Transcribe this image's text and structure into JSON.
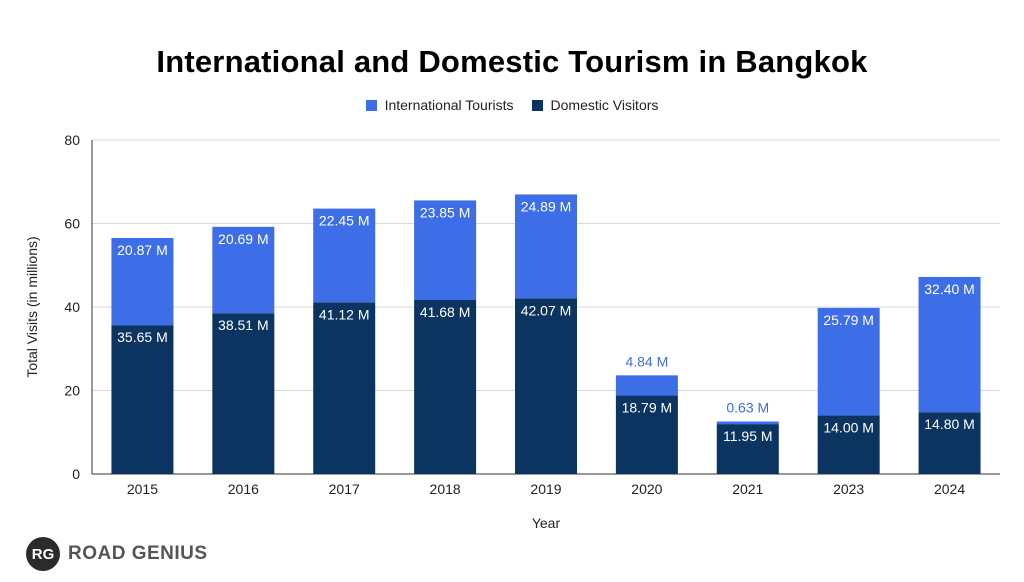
{
  "chart_data": {
    "type": "bar",
    "stacked": true,
    "title": "International and Domestic Tourism in Bangkok",
    "xlabel": "Year",
    "ylabel": "Total Visits (in millions)",
    "ylim": [
      0,
      80
    ],
    "yticks": [
      "0",
      "20",
      "40",
      "60",
      "80"
    ],
    "grid": true,
    "legend_position": "top",
    "categories": [
      "2015",
      "2016",
      "2017",
      "2018",
      "2019",
      "2020",
      "2021",
      "2023",
      "2024"
    ],
    "series": [
      {
        "name": "Domestic Visitors",
        "color": "#0b3560",
        "values": [
          35.65,
          38.51,
          41.12,
          41.68,
          42.07,
          18.79,
          11.95,
          14.0,
          14.8
        ],
        "labels": [
          "35.65 M",
          "38.51 M",
          "41.12 M",
          "41.68 M",
          "42.07 M",
          "18.79 M",
          "11.95 M",
          "14.00 M",
          "14.80 M"
        ]
      },
      {
        "name": "International Tourists",
        "color": "#3d6ee8",
        "values": [
          20.87,
          20.69,
          22.45,
          23.85,
          24.89,
          4.84,
          0.63,
          25.79,
          32.4
        ],
        "labels": [
          "20.87 M",
          "20.69 M",
          "22.45 M",
          "23.85 M",
          "24.89 M",
          "4.84 M",
          "0.63 M",
          "25.79 M",
          "32.40 M"
        ]
      }
    ]
  },
  "legend": {
    "international_label": "International Tourists",
    "international_color": "#3d6ee8",
    "domestic_label": "Domestic Visitors",
    "domestic_color": "#0b3560"
  },
  "branding": {
    "logo_initials": "RG",
    "logo_text": "ROAD GENIUS"
  }
}
